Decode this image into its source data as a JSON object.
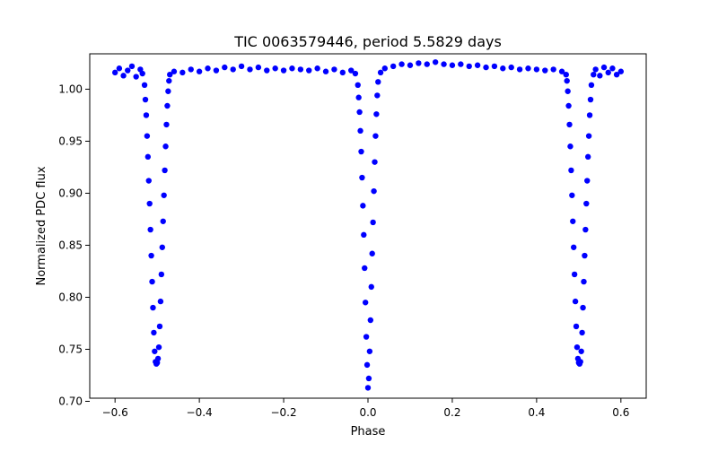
{
  "chart_data": {
    "type": "scatter",
    "title": "TIC 0063579446, period 5.5829 days",
    "xlabel": "Phase",
    "ylabel": "Normalized PDC flux",
    "xlim": [
      -0.66,
      0.66
    ],
    "ylim": [
      0.703,
      1.034
    ],
    "xticks": [
      -0.6,
      -0.4,
      -0.2,
      0.0,
      0.2,
      0.4,
      0.6
    ],
    "xtick_labels": [
      "−0.6",
      "−0.4",
      "−0.2",
      "0.0",
      "0.2",
      "0.4",
      "0.6"
    ],
    "yticks": [
      0.7,
      0.75,
      0.8,
      0.85,
      0.9,
      0.95,
      1.0
    ],
    "ytick_labels": [
      "0.70",
      "0.75",
      "0.80",
      "0.85",
      "0.90",
      "0.95",
      "1.00"
    ],
    "grid": false,
    "legend": "none",
    "marker_color": "#0000ff",
    "series": [
      {
        "marker": "circle",
        "points": [
          [
            -0.6,
            1.016
          ],
          [
            -0.59,
            1.02
          ],
          [
            -0.58,
            1.013
          ],
          [
            -0.57,
            1.018
          ],
          [
            -0.56,
            1.022
          ],
          [
            -0.55,
            1.012
          ],
          [
            -0.54,
            1.019
          ],
          [
            -0.535,
            1.015
          ],
          [
            -0.53,
            1.004
          ],
          [
            -0.528,
            0.99
          ],
          [
            -0.526,
            0.975
          ],
          [
            -0.524,
            0.955
          ],
          [
            -0.522,
            0.935
          ],
          [
            -0.52,
            0.912
          ],
          [
            -0.518,
            0.89
          ],
          [
            -0.516,
            0.865
          ],
          [
            -0.514,
            0.84
          ],
          [
            -0.512,
            0.815
          ],
          [
            -0.51,
            0.79
          ],
          [
            -0.508,
            0.766
          ],
          [
            -0.506,
            0.748
          ],
          [
            -0.504,
            0.738
          ],
          [
            -0.502,
            0.736
          ],
          [
            -0.5,
            0.737
          ],
          [
            -0.498,
            0.741
          ],
          [
            -0.496,
            0.752
          ],
          [
            -0.494,
            0.772
          ],
          [
            -0.492,
            0.796
          ],
          [
            -0.49,
            0.822
          ],
          [
            -0.488,
            0.848
          ],
          [
            -0.486,
            0.873
          ],
          [
            -0.484,
            0.898
          ],
          [
            -0.482,
            0.922
          ],
          [
            -0.48,
            0.945
          ],
          [
            -0.478,
            0.966
          ],
          [
            -0.476,
            0.984
          ],
          [
            -0.474,
            0.998
          ],
          [
            -0.472,
            1.008
          ],
          [
            -0.47,
            1.014
          ],
          [
            -0.46,
            1.017
          ],
          [
            -0.44,
            1.016
          ],
          [
            -0.42,
            1.019
          ],
          [
            -0.4,
            1.017
          ],
          [
            -0.38,
            1.02
          ],
          [
            -0.36,
            1.018
          ],
          [
            -0.34,
            1.021
          ],
          [
            -0.32,
            1.019
          ],
          [
            -0.3,
            1.022
          ],
          [
            -0.28,
            1.019
          ],
          [
            -0.26,
            1.021
          ],
          [
            -0.24,
            1.018
          ],
          [
            -0.22,
            1.02
          ],
          [
            -0.2,
            1.018
          ],
          [
            -0.18,
            1.02
          ],
          [
            -0.16,
            1.019
          ],
          [
            -0.14,
            1.018
          ],
          [
            -0.12,
            1.02
          ],
          [
            -0.1,
            1.017
          ],
          [
            -0.08,
            1.019
          ],
          [
            -0.06,
            1.016
          ],
          [
            -0.04,
            1.018
          ],
          [
            -0.03,
            1.015
          ],
          [
            -0.024,
            1.004
          ],
          [
            -0.022,
            0.992
          ],
          [
            -0.02,
            0.978
          ],
          [
            -0.018,
            0.96
          ],
          [
            -0.016,
            0.94
          ],
          [
            -0.014,
            0.915
          ],
          [
            -0.012,
            0.888
          ],
          [
            -0.01,
            0.86
          ],
          [
            -0.008,
            0.828
          ],
          [
            -0.006,
            0.795
          ],
          [
            -0.004,
            0.762
          ],
          [
            -0.002,
            0.735
          ],
          [
            0.0,
            0.713
          ],
          [
            0.002,
            0.722
          ],
          [
            0.004,
            0.748
          ],
          [
            0.006,
            0.778
          ],
          [
            0.008,
            0.81
          ],
          [
            0.01,
            0.842
          ],
          [
            0.012,
            0.872
          ],
          [
            0.014,
            0.902
          ],
          [
            0.016,
            0.93
          ],
          [
            0.018,
            0.955
          ],
          [
            0.02,
            0.976
          ],
          [
            0.022,
            0.994
          ],
          [
            0.024,
            1.007
          ],
          [
            0.03,
            1.016
          ],
          [
            0.04,
            1.02
          ],
          [
            0.06,
            1.022
          ],
          [
            0.08,
            1.024
          ],
          [
            0.1,
            1.023
          ],
          [
            0.12,
            1.025
          ],
          [
            0.14,
            1.024
          ],
          [
            0.16,
            1.026
          ],
          [
            0.18,
            1.024
          ],
          [
            0.2,
            1.023
          ],
          [
            0.22,
            1.024
          ],
          [
            0.24,
            1.022
          ],
          [
            0.26,
            1.023
          ],
          [
            0.28,
            1.021
          ],
          [
            0.3,
            1.022
          ],
          [
            0.32,
            1.02
          ],
          [
            0.34,
            1.021
          ],
          [
            0.36,
            1.019
          ],
          [
            0.38,
            1.02
          ],
          [
            0.4,
            1.019
          ],
          [
            0.42,
            1.018
          ],
          [
            0.44,
            1.019
          ],
          [
            0.46,
            1.017
          ],
          [
            0.47,
            1.014
          ],
          [
            0.472,
            1.008
          ],
          [
            0.474,
            0.998
          ],
          [
            0.476,
            0.984
          ],
          [
            0.478,
            0.966
          ],
          [
            0.48,
            0.945
          ],
          [
            0.482,
            0.922
          ],
          [
            0.484,
            0.898
          ],
          [
            0.486,
            0.873
          ],
          [
            0.488,
            0.848
          ],
          [
            0.49,
            0.822
          ],
          [
            0.492,
            0.796
          ],
          [
            0.494,
            0.772
          ],
          [
            0.496,
            0.752
          ],
          [
            0.498,
            0.741
          ],
          [
            0.5,
            0.737
          ],
          [
            0.502,
            0.736
          ],
          [
            0.504,
            0.738
          ],
          [
            0.506,
            0.748
          ],
          [
            0.508,
            0.766
          ],
          [
            0.51,
            0.79
          ],
          [
            0.512,
            0.815
          ],
          [
            0.514,
            0.84
          ],
          [
            0.516,
            0.865
          ],
          [
            0.518,
            0.89
          ],
          [
            0.52,
            0.912
          ],
          [
            0.522,
            0.935
          ],
          [
            0.524,
            0.955
          ],
          [
            0.526,
            0.975
          ],
          [
            0.528,
            0.99
          ],
          [
            0.53,
            1.004
          ],
          [
            0.535,
            1.014
          ],
          [
            0.54,
            1.019
          ],
          [
            0.55,
            1.013
          ],
          [
            0.56,
            1.021
          ],
          [
            0.57,
            1.016
          ],
          [
            0.58,
            1.02
          ],
          [
            0.59,
            1.014
          ],
          [
            0.6,
            1.017
          ]
        ]
      }
    ]
  }
}
